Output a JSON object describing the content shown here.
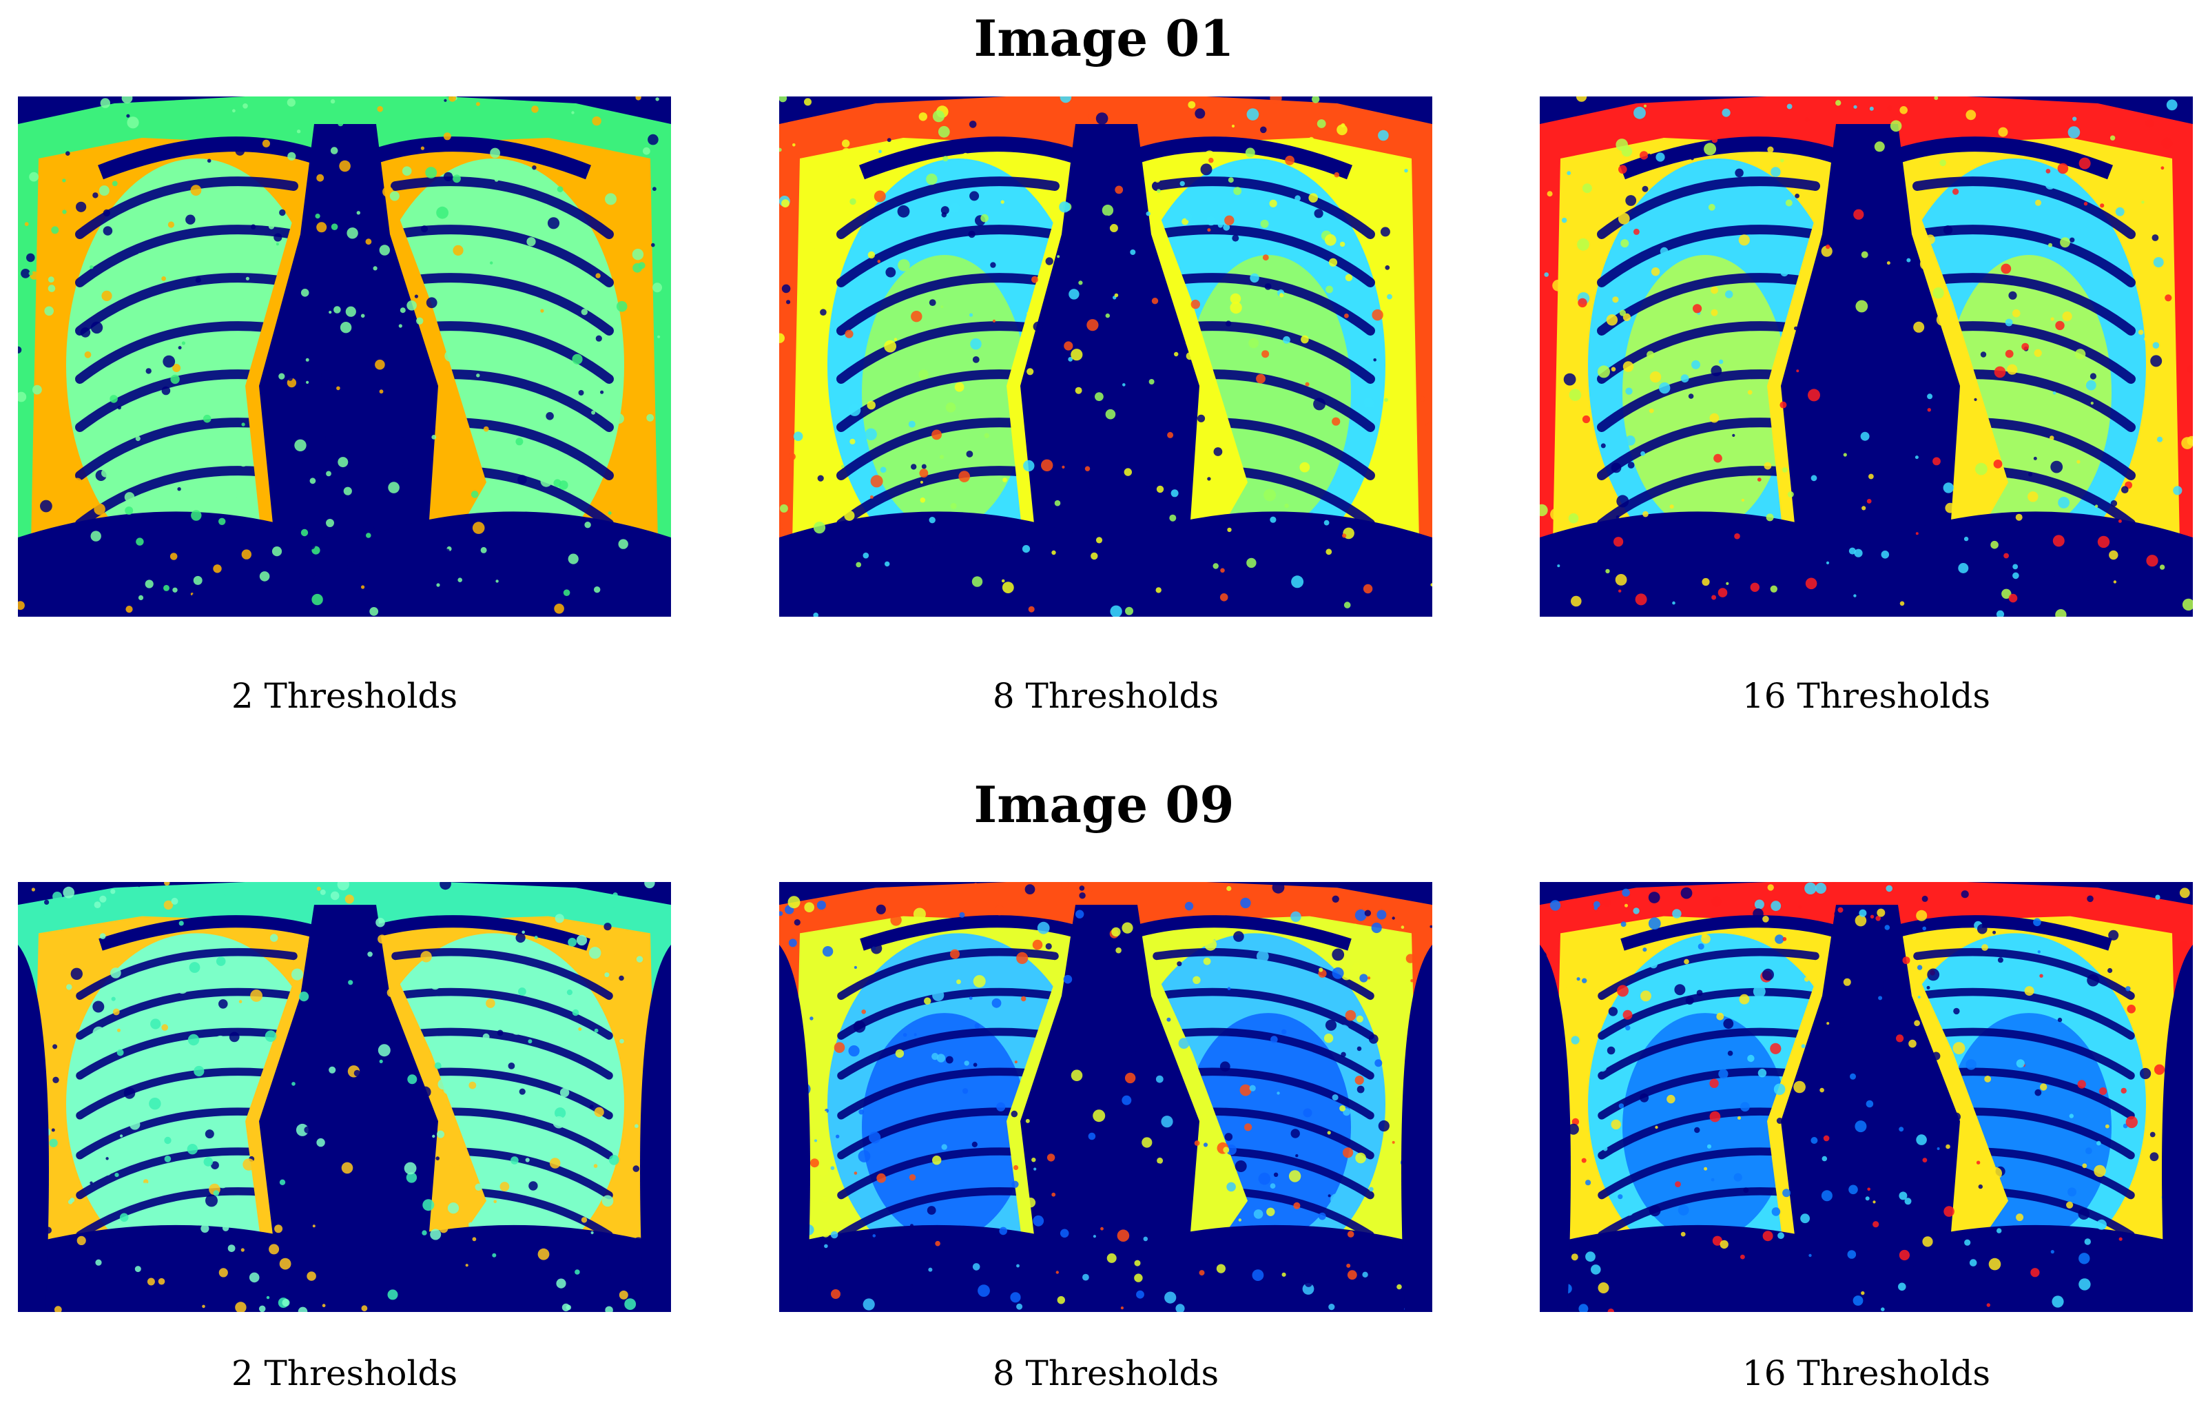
{
  "rows": [
    {
      "title": "Image 01",
      "panels": [
        {
          "caption": "2 Thresholds",
          "palette": [
            "#00007f",
            "#3cf07c",
            "#ffb400",
            "#7cffa0"
          ]
        },
        {
          "caption": "8 Thresholds",
          "palette": [
            "#00007f",
            "#ff4f14",
            "#f5ff1c",
            "#3ce0ff",
            "#9cff5a"
          ]
        },
        {
          "caption": "16 Thresholds",
          "palette": [
            "#00007f",
            "#ff1f1f",
            "#ffe81c",
            "#3cdcff",
            "#b6ff4a"
          ]
        }
      ]
    },
    {
      "title": "Image 09",
      "panels": [
        {
          "caption": "2 Thresholds",
          "palette": [
            "#00007f",
            "#3cf0b4",
            "#ffc81c",
            "#7cffc8"
          ]
        },
        {
          "caption": "8 Thresholds",
          "palette": [
            "#00007f",
            "#ff4f14",
            "#e6ff2c",
            "#3cc8ff",
            "#0c64ff"
          ]
        },
        {
          "caption": "16 Thresholds",
          "palette": [
            "#00007f",
            "#ff1f1f",
            "#ffe81c",
            "#3cdcff",
            "#0c78ff"
          ]
        }
      ]
    }
  ]
}
